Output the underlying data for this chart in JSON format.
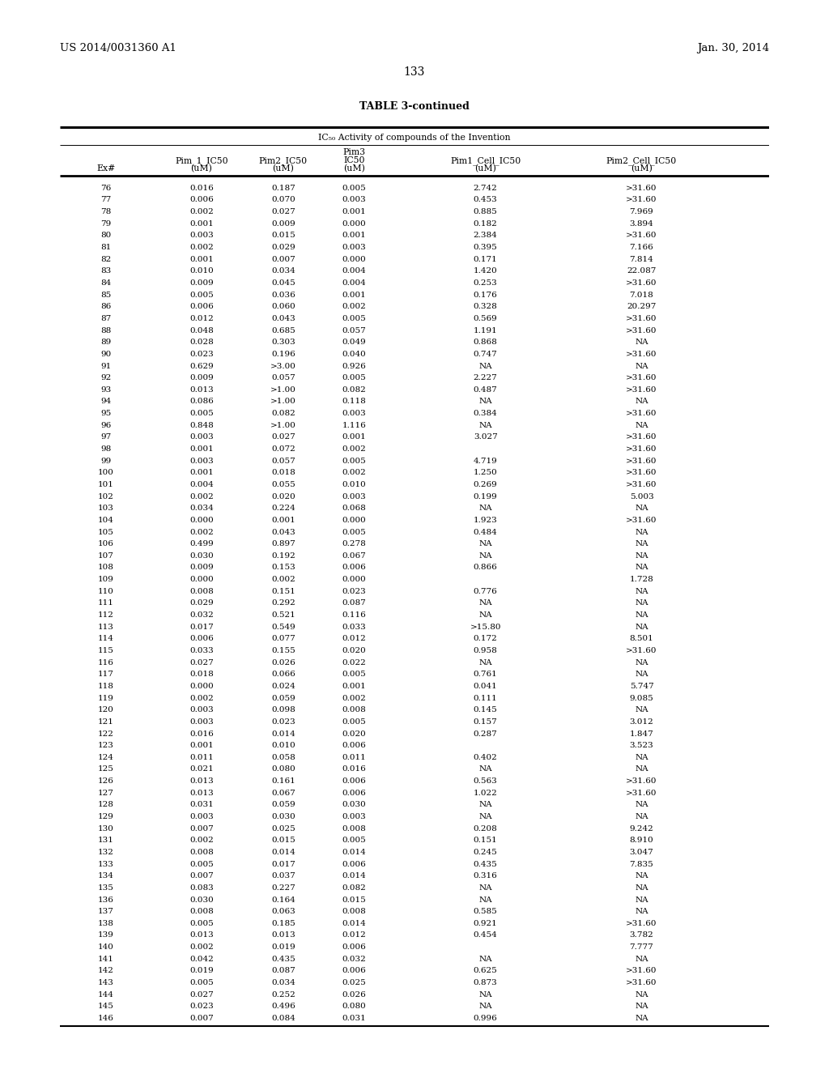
{
  "header_left": "US 2014/0031360 A1",
  "header_right": "Jan. 30, 2014",
  "page_number": "133",
  "table_title": "TABLE 3-continued",
  "table_subtitle": "IC₅₀ Activity of compounds of the Invention",
  "rows": [
    [
      "76",
      "0.016",
      "0.187",
      "0.005",
      "2.742",
      ">31.60"
    ],
    [
      "77",
      "0.006",
      "0.070",
      "0.003",
      "0.453",
      ">31.60"
    ],
    [
      "78",
      "0.002",
      "0.027",
      "0.001",
      "0.885",
      "7.969"
    ],
    [
      "79",
      "0.001",
      "0.009",
      "0.000",
      "0.182",
      "3.894"
    ],
    [
      "80",
      "0.003",
      "0.015",
      "0.001",
      "2.384",
      ">31.60"
    ],
    [
      "81",
      "0.002",
      "0.029",
      "0.003",
      "0.395",
      "7.166"
    ],
    [
      "82",
      "0.001",
      "0.007",
      "0.000",
      "0.171",
      "7.814"
    ],
    [
      "83",
      "0.010",
      "0.034",
      "0.004",
      "1.420",
      "22.087"
    ],
    [
      "84",
      "0.009",
      "0.045",
      "0.004",
      "0.253",
      ">31.60"
    ],
    [
      "85",
      "0.005",
      "0.036",
      "0.001",
      "0.176",
      "7.018"
    ],
    [
      "86",
      "0.006",
      "0.060",
      "0.002",
      "0.328",
      "20.297"
    ],
    [
      "87",
      "0.012",
      "0.043",
      "0.005",
      "0.569",
      ">31.60"
    ],
    [
      "88",
      "0.048",
      "0.685",
      "0.057",
      "1.191",
      ">31.60"
    ],
    [
      "89",
      "0.028",
      "0.303",
      "0.049",
      "0.868",
      "NA"
    ],
    [
      "90",
      "0.023",
      "0.196",
      "0.040",
      "0.747",
      ">31.60"
    ],
    [
      "91",
      "0.629",
      ">3.00",
      "0.926",
      "NA",
      "NA"
    ],
    [
      "92",
      "0.009",
      "0.057",
      "0.005",
      "2.227",
      ">31.60"
    ],
    [
      "93",
      "0.013",
      ">1.00",
      "0.082",
      "0.487",
      ">31.60"
    ],
    [
      "94",
      "0.086",
      ">1.00",
      "0.118",
      "NA",
      "NA"
    ],
    [
      "95",
      "0.005",
      "0.082",
      "0.003",
      "0.384",
      ">31.60"
    ],
    [
      "96",
      "0.848",
      ">1.00",
      "1.116",
      "NA",
      "NA"
    ],
    [
      "97",
      "0.003",
      "0.027",
      "0.001",
      "3.027",
      ">31.60"
    ],
    [
      "98",
      "0.001",
      "0.072",
      "0.002",
      "",
      ">31.60"
    ],
    [
      "99",
      "0.003",
      "0.057",
      "0.005",
      "4.719",
      ">31.60"
    ],
    [
      "100",
      "0.001",
      "0.018",
      "0.002",
      "1.250",
      ">31.60"
    ],
    [
      "101",
      "0.004",
      "0.055",
      "0.010",
      "0.269",
      ">31.60"
    ],
    [
      "102",
      "0.002",
      "0.020",
      "0.003",
      "0.199",
      "5.003"
    ],
    [
      "103",
      "0.034",
      "0.224",
      "0.068",
      "NA",
      "NA"
    ],
    [
      "104",
      "0.000",
      "0.001",
      "0.000",
      "1.923",
      ">31.60"
    ],
    [
      "105",
      "0.002",
      "0.043",
      "0.005",
      "0.484",
      "NA"
    ],
    [
      "106",
      "0.499",
      "0.897",
      "0.278",
      "NA",
      "NA"
    ],
    [
      "107",
      "0.030",
      "0.192",
      "0.067",
      "NA",
      "NA"
    ],
    [
      "108",
      "0.009",
      "0.153",
      "0.006",
      "0.866",
      "NA"
    ],
    [
      "109",
      "0.000",
      "0.002",
      "0.000",
      "",
      "1.728"
    ],
    [
      "110",
      "0.008",
      "0.151",
      "0.023",
      "0.776",
      "NA"
    ],
    [
      "111",
      "0.029",
      "0.292",
      "0.087",
      "NA",
      "NA"
    ],
    [
      "112",
      "0.032",
      "0.521",
      "0.116",
      "NA",
      "NA"
    ],
    [
      "113",
      "0.017",
      "0.549",
      "0.033",
      ">15.80",
      "NA"
    ],
    [
      "114",
      "0.006",
      "0.077",
      "0.012",
      "0.172",
      "8.501"
    ],
    [
      "115",
      "0.033",
      "0.155",
      "0.020",
      "0.958",
      ">31.60"
    ],
    [
      "116",
      "0.027",
      "0.026",
      "0.022",
      "NA",
      "NA"
    ],
    [
      "117",
      "0.018",
      "0.066",
      "0.005",
      "0.761",
      "NA"
    ],
    [
      "118",
      "0.000",
      "0.024",
      "0.001",
      "0.041",
      "5.747"
    ],
    [
      "119",
      "0.002",
      "0.059",
      "0.002",
      "0.111",
      "9.085"
    ],
    [
      "120",
      "0.003",
      "0.098",
      "0.008",
      "0.145",
      "NA"
    ],
    [
      "121",
      "0.003",
      "0.023",
      "0.005",
      "0.157",
      "3.012"
    ],
    [
      "122",
      "0.016",
      "0.014",
      "0.020",
      "0.287",
      "1.847"
    ],
    [
      "123",
      "0.001",
      "0.010",
      "0.006",
      "",
      "3.523"
    ],
    [
      "124",
      "0.011",
      "0.058",
      "0.011",
      "0.402",
      "NA"
    ],
    [
      "125",
      "0.021",
      "0.080",
      "0.016",
      "NA",
      "NA"
    ],
    [
      "126",
      "0.013",
      "0.161",
      "0.006",
      "0.563",
      ">31.60"
    ],
    [
      "127",
      "0.013",
      "0.067",
      "0.006",
      "1.022",
      ">31.60"
    ],
    [
      "128",
      "0.031",
      "0.059",
      "0.030",
      "NA",
      "NA"
    ],
    [
      "129",
      "0.003",
      "0.030",
      "0.003",
      "NA",
      "NA"
    ],
    [
      "130",
      "0.007",
      "0.025",
      "0.008",
      "0.208",
      "9.242"
    ],
    [
      "131",
      "0.002",
      "0.015",
      "0.005",
      "0.151",
      "8.910"
    ],
    [
      "132",
      "0.008",
      "0.014",
      "0.014",
      "0.245",
      "3.047"
    ],
    [
      "133",
      "0.005",
      "0.017",
      "0.006",
      "0.435",
      "7.835"
    ],
    [
      "134",
      "0.007",
      "0.037",
      "0.014",
      "0.316",
      "NA"
    ],
    [
      "135",
      "0.083",
      "0.227",
      "0.082",
      "NA",
      "NA"
    ],
    [
      "136",
      "0.030",
      "0.164",
      "0.015",
      "NA",
      "NA"
    ],
    [
      "137",
      "0.008",
      "0.063",
      "0.008",
      "0.585",
      "NA"
    ],
    [
      "138",
      "0.005",
      "0.185",
      "0.014",
      "0.921",
      ">31.60"
    ],
    [
      "139",
      "0.013",
      "0.013",
      "0.012",
      "0.454",
      "3.782"
    ],
    [
      "140",
      "0.002",
      "0.019",
      "0.006",
      "",
      "7.777"
    ],
    [
      "141",
      "0.042",
      "0.435",
      "0.032",
      "NA",
      "NA"
    ],
    [
      "142",
      "0.019",
      "0.087",
      "0.006",
      "0.625",
      ">31.60"
    ],
    [
      "143",
      "0.005",
      "0.034",
      "0.025",
      "0.873",
      ">31.60"
    ],
    [
      "144",
      "0.027",
      "0.252",
      "0.026",
      "NA",
      "NA"
    ],
    [
      "145",
      "0.023",
      "0.496",
      "0.080",
      "NA",
      "NA"
    ],
    [
      "146",
      "0.007",
      "0.084",
      "0.031",
      "0.996",
      "NA"
    ]
  ]
}
